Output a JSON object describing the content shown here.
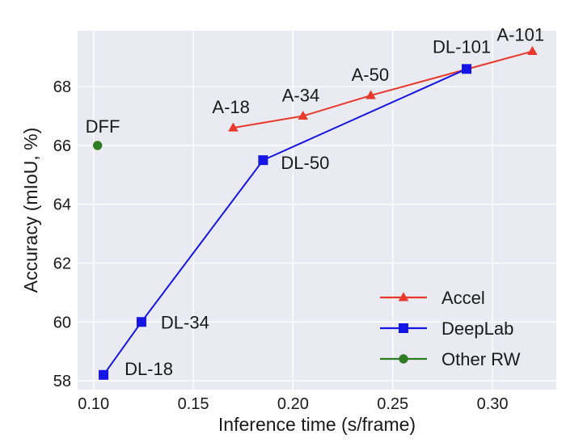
{
  "chart_data": {
    "type": "line",
    "title": "",
    "xlabel": "Inference time (s/frame)",
    "ylabel": "Accuracy (mIoU, %)",
    "xlim": [
      0.092,
      0.332
    ],
    "ylim": [
      57.7,
      69.9
    ],
    "xticks": [
      0.1,
      0.15,
      0.2,
      0.25,
      0.3
    ],
    "yticks": [
      58,
      60,
      62,
      64,
      66,
      68
    ],
    "xtick_labels": [
      "0.10",
      "0.15",
      "0.20",
      "0.25",
      "0.30"
    ],
    "ytick_labels": [
      "58",
      "60",
      "62",
      "64",
      "66",
      "68"
    ],
    "grid": true,
    "legend_position": "bottom-right",
    "series": [
      {
        "name": "Accel",
        "color": "#e8392b",
        "marker": "triangle",
        "x": [
          0.17,
          0.205,
          0.239,
          0.32
        ],
        "y": [
          66.6,
          67.0,
          67.7,
          69.2
        ],
        "point_labels": [
          "A-18",
          "A-34",
          "A-50",
          "A-101"
        ]
      },
      {
        "name": "DeepLab",
        "color": "#1515e8",
        "marker": "square",
        "x": [
          0.105,
          0.124,
          0.185,
          0.287
        ],
        "y": [
          58.2,
          60.0,
          65.5,
          68.6
        ],
        "point_labels": [
          "DL-18",
          "DL-34",
          "DL-50",
          "DL-101"
        ]
      },
      {
        "name": "Other RW",
        "color": "#2f7d22",
        "marker": "circle",
        "x": [
          0.102
        ],
        "y": [
          66.0
        ],
        "point_labels": [
          "DFF"
        ]
      }
    ]
  }
}
